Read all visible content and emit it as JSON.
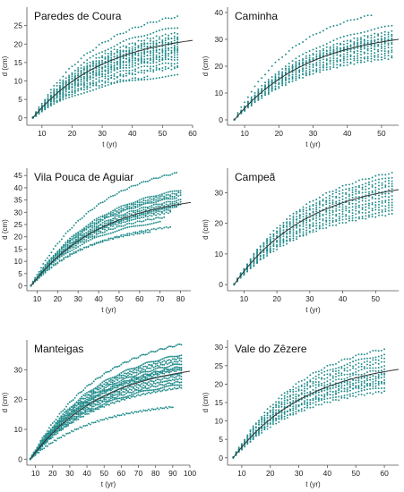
{
  "colors": {
    "points": "#1f8a8a",
    "fit_line": "#333333",
    "axis": "#555555"
  },
  "chart_data": [
    {
      "type": "scatter",
      "title": "Paredes de Coura",
      "xlabel": "t (yr)",
      "ylabel": "d (cm)",
      "xlim": [
        5,
        60
      ],
      "ylim": [
        -2,
        30
      ],
      "xticks": [
        10,
        20,
        30,
        40,
        50,
        60
      ],
      "yticks": [
        0,
        5,
        10,
        15,
        20,
        25
      ],
      "t_start": 7,
      "trees": [
        27.5,
        24.5,
        23,
        22,
        21.5,
        21,
        20.5,
        20,
        19.5,
        19,
        18.5,
        18,
        17.5,
        17,
        16.5,
        16,
        15,
        14,
        13.5,
        11.5,
        11
      ],
      "t_end": [
        55,
        55,
        55,
        55,
        55,
        55,
        55,
        55,
        55,
        55,
        55,
        55,
        55,
        55,
        55,
        55,
        55,
        55,
        55,
        55,
        45
      ],
      "fit": {
        "end": 21
      }
    },
    {
      "type": "scatter",
      "title": "Caminha",
      "xlabel": "t (yr)",
      "ylabel": "d (cm)",
      "xlim": [
        5,
        55
      ],
      "ylim": [
        -2,
        42
      ],
      "xticks": [
        10,
        20,
        30,
        40,
        50
      ],
      "yticks": [
        0,
        10,
        20,
        30,
        40
      ],
      "t_start": 7,
      "trees": [
        39,
        35,
        33,
        32,
        31,
        30.5,
        30,
        29.5,
        29,
        28,
        27,
        26,
        25,
        24,
        23
      ],
      "t_end": [
        47,
        53,
        53,
        53,
        53,
        53,
        53,
        53,
        53,
        53,
        53,
        53,
        53,
        53,
        53
      ],
      "fit": {
        "end": 30
      }
    },
    {
      "type": "scatter",
      "title": "Vila Pouca de Aguiar",
      "xlabel": "t (yr)",
      "ylabel": "d (cm)",
      "xlim": [
        5,
        85
      ],
      "ylim": [
        -2,
        48
      ],
      "xticks": [
        10,
        20,
        30,
        40,
        50,
        60,
        70,
        80
      ],
      "yticks": [
        0,
        5,
        10,
        15,
        20,
        25,
        30,
        35,
        40,
        45
      ],
      "t_start": 7,
      "trees": [
        46,
        39,
        38,
        37,
        36,
        35,
        34,
        33,
        32,
        31,
        30,
        28,
        26,
        24,
        22
      ],
      "t_end": [
        78,
        80,
        80,
        80,
        78,
        80,
        80,
        80,
        78,
        75,
        75,
        72,
        70,
        75,
        65
      ],
      "fit": {
        "end": 34
      }
    },
    {
      "type": "scatter",
      "title": "Campeã",
      "xlabel": "t (yr)",
      "ylabel": "d (cm)",
      "xlim": [
        5,
        57
      ],
      "ylim": [
        -2,
        38
      ],
      "xticks": [
        10,
        20,
        30,
        40,
        50
      ],
      "yticks": [
        0,
        10,
        20,
        30
      ],
      "t_start": 7,
      "trees": [
        36.5,
        35,
        34,
        33,
        32,
        31,
        30,
        29,
        28,
        27,
        26,
        25,
        24,
        23
      ],
      "t_end": [
        55,
        55,
        55,
        55,
        55,
        55,
        55,
        55,
        55,
        55,
        55,
        55,
        55,
        55
      ],
      "fit": {
        "end": 31
      }
    },
    {
      "type": "scatter",
      "title": "Manteigas",
      "xlabel": "t (yr)",
      "ylabel": "d (cm)",
      "xlim": [
        5,
        100
      ],
      "ylim": [
        -2,
        40
      ],
      "xticks": [
        10,
        20,
        30,
        40,
        50,
        60,
        70,
        80,
        90,
        100
      ],
      "yticks": [
        0,
        10,
        20,
        30
      ],
      "t_start": 7,
      "trees": [
        38.5,
        35,
        34,
        33,
        32,
        31,
        30.5,
        30,
        29,
        28,
        27,
        26,
        25,
        24,
        17.5
      ],
      "t_end": [
        95,
        95,
        95,
        95,
        95,
        95,
        95,
        95,
        95,
        95,
        95,
        95,
        95,
        95,
        90
      ],
      "fit": {
        "end": 29.5
      }
    },
    {
      "type": "scatter",
      "title": "Vale do Zêzere",
      "xlabel": "t (yr)",
      "ylabel": "d (cm)",
      "xlim": [
        5,
        65
      ],
      "ylim": [
        -2,
        32
      ],
      "xticks": [
        10,
        20,
        30,
        40,
        50,
        60
      ],
      "yticks": [
        0,
        5,
        10,
        15,
        20,
        25,
        30
      ],
      "t_start": 7,
      "trees": [
        29.5,
        28,
        27,
        26,
        25,
        24,
        23,
        22.5,
        22,
        21,
        20.5,
        20,
        19,
        18
      ],
      "t_end": [
        60,
        60,
        60,
        60,
        60,
        60,
        60,
        60,
        60,
        60,
        60,
        60,
        60,
        60
      ],
      "fit": {
        "end": 24
      }
    }
  ]
}
